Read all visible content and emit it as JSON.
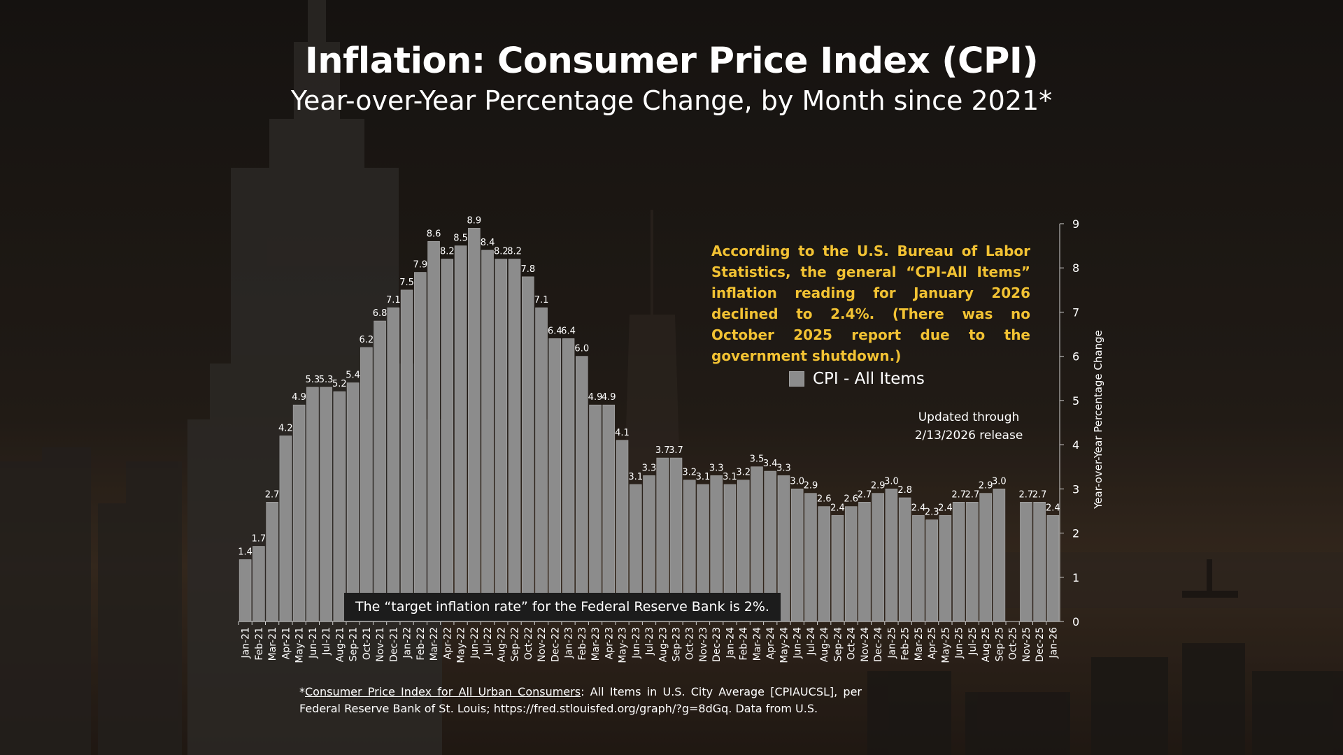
{
  "page": {
    "title": "Inflation: Consumer Price Index (CPI)",
    "subtitle": "Year-over-Year Percentage Change, by Month since 2021*",
    "note": "According to the U.S. Bureau of Labor Statistics, the general “CPI-All Items” inflation reading for January 2026 declined to 2.4%. (There was no October 2025 report due to the government shutdown.)",
    "updated_line1": "Updated through",
    "updated_line2": "2/13/2026 release",
    "target_text": "The “target inflation rate” for the Federal Reserve Bank is 2%.",
    "footnote_star": "*",
    "footnote_link": "Consumer Price Index for All Urban Consumers",
    "footnote_rest": ": All Items in U.S. City Average [CPIAUCSL], per Federal Reserve Bank of St. Louis; https://fred.stlouisfed.org/graph/?g=8dGq. Data from U.S.",
    "colors": {
      "bar": "#8c8c8c",
      "note": "#f2c233",
      "text": "#ffffff",
      "target_box": "#1c1c1c"
    }
  },
  "chart_data": {
    "type": "bar",
    "title": "Inflation: Consumer Price Index (CPI)",
    "subtitle": "Year-over-Year Percentage Change, by Month since 2021*",
    "ylabel": "Year-over-Year Percentage Change",
    "xlabel": "",
    "ylim": [
      0,
      9
    ],
    "yticks": [
      "0",
      "1",
      "2",
      "3",
      "4",
      "5",
      "6",
      "7",
      "8",
      "9"
    ],
    "y_axis_position": "right",
    "legend": {
      "position": "right",
      "entries": [
        "CPI - All Items"
      ]
    },
    "grid": false,
    "categories": [
      "Jan-21",
      "Feb-21",
      "Mar-21",
      "Apr-21",
      "May-21",
      "Jun-21",
      "Jul-21",
      "Aug-21",
      "Sep-21",
      "Oct-21",
      "Nov-21",
      "Dec-21",
      "Jan-22",
      "Feb-22",
      "Mar-22",
      "Apr-22",
      "May-22",
      "Jun-22",
      "Jul-22",
      "Aug-22",
      "Sep-22",
      "Oct-22",
      "Nov-22",
      "Dec-22",
      "Jan-23",
      "Feb-23",
      "Mar-23",
      "Apr-23",
      "May-23",
      "Jun-23",
      "Jul-23",
      "Aug-23",
      "Sep-23",
      "Oct-23",
      "Nov-23",
      "Dec-23",
      "Jan-24",
      "Feb-24",
      "Mar-24",
      "Apr-24",
      "May-24",
      "Jun-24",
      "Jul-24",
      "Aug-24",
      "Sep-24",
      "Oct-24",
      "Nov-24",
      "Dec-24",
      "Jan-25",
      "Feb-25",
      "Mar-25",
      "Apr-25",
      "May-25",
      "Jun-25",
      "Jul-25",
      "Aug-25",
      "Sep-25",
      "Oct-25",
      "Nov-25",
      "Dec-25",
      "Jan-26"
    ],
    "series": [
      {
        "name": "CPI - All Items",
        "values": [
          1.4,
          1.7,
          2.7,
          4.2,
          4.9,
          5.3,
          5.3,
          5.2,
          5.4,
          6.2,
          6.8,
          7.1,
          7.5,
          7.9,
          8.6,
          8.2,
          8.5,
          8.9,
          8.4,
          8.2,
          8.2,
          7.8,
          7.1,
          6.4,
          6.4,
          6.0,
          4.9,
          4.9,
          4.1,
          3.1,
          3.3,
          3.7,
          3.7,
          3.2,
          3.1,
          3.3,
          3.1,
          3.2,
          3.5,
          3.4,
          3.3,
          3.0,
          2.9,
          2.6,
          2.4,
          2.6,
          2.7,
          2.9,
          3.0,
          2.8,
          2.4,
          2.3,
          2.4,
          2.7,
          2.7,
          2.9,
          3.0,
          null,
          2.7,
          2.7,
          2.4
        ],
        "labels": [
          "1.4",
          "1.7",
          "2.7",
          "4.2",
          "4.9",
          "5.3",
          "5.3",
          "5.2",
          "5.4",
          "6.2",
          "6.8",
          "7.1",
          "7.5",
          "7.9",
          "8.6",
          "8.2",
          "8.5",
          "8.9",
          "8.4",
          "8.2",
          "8.2",
          "7.8",
          "7.1",
          "6.4",
          "6.4",
          "6.0",
          "4.9",
          "4.9",
          "4.1",
          "3.1",
          "3.3",
          "3.7",
          "3.7",
          "3.2",
          "3.1",
          "3.3",
          "3.1",
          "3.2",
          "3.5",
          "3.4",
          "3.3",
          "3.0",
          "2.9",
          "2.6",
          "2.4",
          "2.6",
          "2.7",
          "2.9",
          "3.0",
          "2.8",
          "2.4",
          "2.3",
          "2.4",
          "2.7",
          "2.7",
          "2.9",
          "3.0",
          "",
          "2.7",
          "2.7",
          "2.4"
        ]
      }
    ]
  }
}
